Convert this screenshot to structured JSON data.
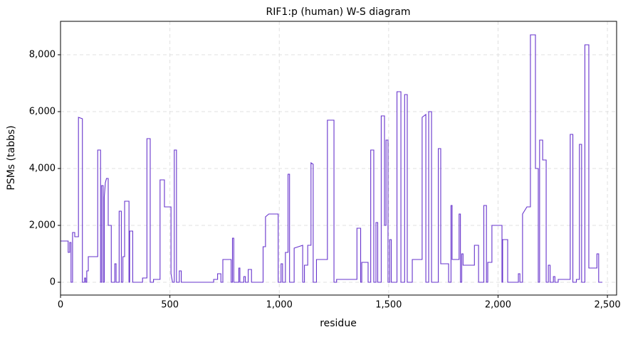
{
  "chart_data": {
    "type": "line",
    "title": "RIF1:p (human) W-S diagram",
    "x_label": "residue",
    "y_label": "PSMs (tabbs)",
    "color": "#6633cc",
    "grid": true,
    "xlim": [
      0,
      2542
    ],
    "ylim": [
      -450,
      9175
    ],
    "xticks": [
      0,
      500,
      {
        "value": 1000,
        "label": "1,000"
      },
      {
        "value": 1500,
        "label": "1,500"
      },
      {
        "value": 2000,
        "label": "2,000"
      },
      {
        "value": 2500,
        "label": "2,500"
      }
    ],
    "yticks": [
      0,
      {
        "value": 2000,
        "label": "2,000"
      },
      {
        "value": 4000,
        "label": "4,000"
      },
      {
        "value": 6000,
        "label": "6,000"
      },
      {
        "value": 8000,
        "label": "8,000"
      }
    ],
    "x": [
      0,
      35,
      35,
      42,
      42,
      48,
      48,
      55,
      55,
      65,
      65,
      82,
      82,
      100,
      100,
      110,
      110,
      115,
      115,
      120,
      120,
      127,
      127,
      170,
      170,
      183,
      183,
      188,
      188,
      195,
      195,
      200,
      200,
      205,
      210,
      218,
      218,
      232,
      232,
      248,
      248,
      254,
      254,
      268,
      268,
      278,
      278,
      285,
      285,
      293,
      293,
      313,
      313,
      316,
      316,
      330,
      330,
      375,
      375,
      395,
      395,
      410,
      410,
      425,
      425,
      455,
      455,
      475,
      475,
      505,
      505,
      512,
      520,
      520,
      530,
      530,
      543,
      543,
      552,
      552,
      700,
      700,
      718,
      718,
      733,
      733,
      742,
      742,
      780,
      780,
      786,
      786,
      792,
      792,
      815,
      815,
      820,
      820,
      838,
      838,
      845,
      845,
      858,
      858,
      873,
      873,
      926,
      926,
      937,
      937,
      952,
      995,
      995,
      1008,
      1008,
      1015,
      1015,
      1028,
      1028,
      1040,
      1040,
      1047,
      1047,
      1068,
      1068,
      1107,
      1107,
      1115,
      1115,
      1130,
      1130,
      1145,
      1145,
      1155,
      1155,
      1170,
      1170,
      1220,
      1220,
      1250,
      1250,
      1262,
      1262,
      1355,
      1355,
      1372,
      1372,
      1377,
      1377,
      1406,
      1406,
      1418,
      1418,
      1432,
      1432,
      1442,
      1442,
      1450,
      1450,
      1466,
      1466,
      1481,
      1481,
      1488,
      1488,
      1497,
      1497,
      1505,
      1505,
      1512,
      1512,
      1538,
      1538,
      1556,
      1556,
      1573,
      1573,
      1585,
      1585,
      1608,
      1608,
      1653,
      1653,
      1670,
      1670,
      1683,
      1683,
      1696,
      1696,
      1727,
      1727,
      1738,
      1738,
      1774,
      1774,
      1785,
      1785,
      1790,
      1790,
      1822,
      1822,
      1828,
      1828,
      1834,
      1834,
      1840,
      1840,
      1892,
      1892,
      1911,
      1911,
      1935,
      1935,
      1947,
      1947,
      1953,
      1953,
      1972,
      1972,
      2018,
      2018,
      2021,
      2021,
      2044,
      2044,
      2093,
      2093,
      2100,
      2100,
      2112,
      2112,
      2132,
      2148,
      2148,
      2171,
      2171,
      2184,
      2184,
      2190,
      2190,
      2204,
      2204,
      2220,
      2220,
      2230,
      2230,
      2238,
      2238,
      2253,
      2253,
      2260,
      2260,
      2275,
      2275,
      2330,
      2330,
      2342,
      2342,
      2358,
      2358,
      2372,
      2372,
      2382,
      2382,
      2397,
      2397,
      2415,
      2415,
      2452,
      2452,
      2460,
      2460,
      2477
    ],
    "values": [
      1450,
      1450,
      1050,
      1050,
      1400,
      1400,
      0,
      0,
      1750,
      1750,
      1600,
      1600,
      5800,
      5750,
      0,
      0,
      150,
      150,
      0,
      0,
      400,
      400,
      900,
      900,
      4650,
      4650,
      0,
      0,
      3400,
      3400,
      0,
      0,
      3000,
      3500,
      3650,
      3650,
      2000,
      2000,
      0,
      0,
      650,
      650,
      0,
      0,
      2500,
      2500,
      0,
      0,
      900,
      900,
      2850,
      2850,
      0,
      0,
      1800,
      1800,
      0,
      0,
      150,
      150,
      5050,
      5050,
      0,
      0,
      100,
      100,
      3600,
      3600,
      2650,
      2650,
      300,
      0,
      0,
      4650,
      4650,
      0,
      0,
      400,
      400,
      0,
      0,
      100,
      100,
      300,
      300,
      0,
      0,
      800,
      800,
      0,
      0,
      1550,
      1550,
      0,
      0,
      500,
      500,
      0,
      0,
      200,
      200,
      0,
      0,
      450,
      450,
      0,
      0,
      1250,
      1250,
      2300,
      2400,
      2400,
      0,
      0,
      650,
      650,
      0,
      0,
      1050,
      1050,
      3800,
      3800,
      0,
      0,
      1200,
      1300,
      0,
      0,
      600,
      600,
      1300,
      1300,
      4200,
      4150,
      0,
      0,
      800,
      800,
      5700,
      5700,
      0,
      0,
      100,
      100,
      1900,
      1900,
      0,
      0,
      700,
      700,
      0,
      0,
      4650,
      4650,
      0,
      0,
      2100,
      2100,
      0,
      0,
      5850,
      5850,
      2000,
      2000,
      5000,
      5000,
      0,
      0,
      1500,
      1500,
      0,
      0,
      6700,
      6700,
      0,
      0,
      6600,
      6600,
      0,
      0,
      800,
      800,
      5800,
      5900,
      0,
      0,
      6000,
      6000,
      0,
      0,
      4700,
      4700,
      650,
      650,
      0,
      0,
      2700,
      2700,
      800,
      800,
      2400,
      2400,
      0,
      0,
      1000,
      1000,
      600,
      600,
      1300,
      1300,
      0,
      0,
      2700,
      2700,
      0,
      0,
      700,
      700,
      2000,
      2000,
      0,
      0,
      1500,
      1500,
      0,
      0,
      300,
      300,
      0,
      0,
      2400,
      2650,
      2650,
      8700,
      8700,
      4000,
      4000,
      0,
      0,
      5000,
      5000,
      4300,
      4300,
      0,
      0,
      600,
      600,
      0,
      0,
      200,
      200,
      0,
      0,
      100,
      100,
      5200,
      5200,
      0,
      0,
      100,
      100,
      4850,
      4850,
      0,
      0,
      8350,
      8350,
      500,
      500,
      1000,
      1000,
      0,
      0
    ]
  }
}
